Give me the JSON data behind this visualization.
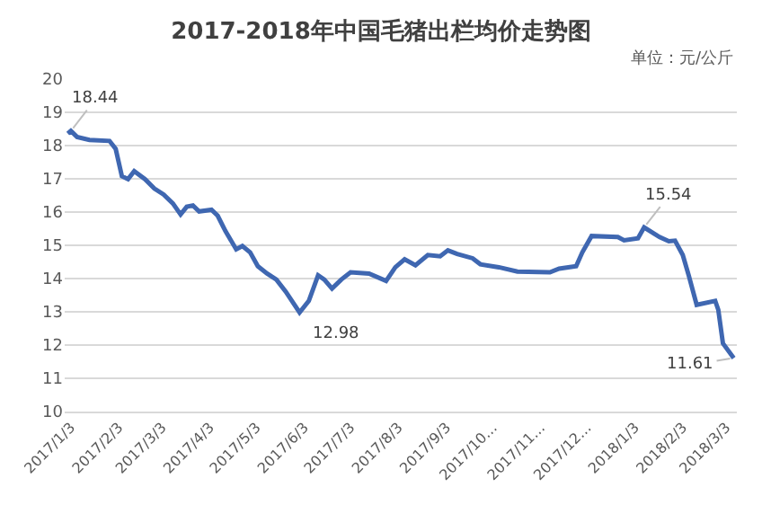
{
  "chart_data": {
    "type": "line",
    "title": "2017-2018年中国毛猪出栏均价走势图",
    "annotations": [
      "单位：元/公斤",
      {
        "text": "18.44",
        "x": "2017-01-03",
        "y": 18.44
      },
      {
        "text": "12.98",
        "x": "2017-05-31",
        "y": 12.98
      },
      {
        "text": "15.54",
        "x": "2018-01-09",
        "y": 15.54
      },
      {
        "text": "11.61",
        "x": "2018-03-08",
        "y": 11.61
      }
    ],
    "x": [
      "2017-01-01",
      "2017-01-03",
      "2017-01-07",
      "2017-01-15",
      "2017-01-28",
      "2017-02-01",
      "2017-02-05",
      "2017-02-09",
      "2017-02-13",
      "2017-02-20",
      "2017-02-26",
      "2017-03-04",
      "2017-03-10",
      "2017-03-15",
      "2017-03-19",
      "2017-03-23",
      "2017-03-27",
      "2017-04-04",
      "2017-04-08",
      "2017-04-13",
      "2017-04-20",
      "2017-04-24",
      "2017-04-29",
      "2017-05-04",
      "2017-05-10",
      "2017-05-16",
      "2017-05-22",
      "2017-05-31",
      "2017-06-06",
      "2017-06-12",
      "2017-06-16",
      "2017-06-21",
      "2017-06-27",
      "2017-07-03",
      "2017-07-15",
      "2017-07-26",
      "2017-08-01",
      "2017-08-07",
      "2017-08-14",
      "2017-08-22",
      "2017-08-30",
      "2017-09-04",
      "2017-09-10",
      "2017-09-20",
      "2017-09-25",
      "2017-10-07",
      "2017-10-19",
      "2017-11-09",
      "2017-11-15",
      "2017-11-26",
      "2017-11-30",
      "2017-12-06",
      "2017-12-23",
      "2017-12-27",
      "2018-01-05",
      "2018-01-09",
      "2018-01-19",
      "2018-01-25",
      "2018-01-29",
      "2018-02-03",
      "2018-02-07",
      "2018-02-12",
      "2018-02-24",
      "2018-02-26",
      "2018-03-01",
      "2018-03-08"
    ],
    "series": [
      {
        "color": "#3f67b1",
        "values": [
          18.36,
          18.44,
          18.26,
          18.17,
          18.14,
          17.9,
          17.08,
          16.99,
          17.23,
          16.99,
          16.71,
          16.53,
          16.26,
          15.93,
          16.16,
          16.2,
          16.02,
          16.07,
          15.89,
          15.43,
          14.88,
          14.98,
          14.79,
          14.37,
          14.15,
          13.97,
          13.61,
          12.98,
          13.33,
          14.1,
          13.97,
          13.7,
          13.97,
          14.19,
          14.15,
          13.93,
          14.34,
          14.58,
          14.4,
          14.71,
          14.67,
          14.85,
          14.74,
          14.61,
          14.43,
          14.34,
          14.21,
          14.19,
          14.3,
          14.37,
          14.79,
          15.28,
          15.25,
          15.15,
          15.21,
          15.54,
          15.25,
          15.12,
          15.14,
          14.71,
          14.07,
          13.21,
          13.33,
          13.06,
          12.05,
          11.61
        ]
      }
    ],
    "xlim": [
      "2016-12-30",
      "2018-03-10"
    ],
    "xticks": [
      {
        "value": "2017-01-03",
        "label": "2017/1/3"
      },
      {
        "value": "2017-02-03",
        "label": "2017/2/3"
      },
      {
        "value": "2017-03-03",
        "label": "2017/3/3"
      },
      {
        "value": "2017-04-03",
        "label": "2017/4/3"
      },
      {
        "value": "2017-05-03",
        "label": "2017/5/3"
      },
      {
        "value": "2017-06-03",
        "label": "2017/6/3"
      },
      {
        "value": "2017-07-03",
        "label": "2017/7/3"
      },
      {
        "value": "2017-08-03",
        "label": "2017/8/3"
      },
      {
        "value": "2017-09-03",
        "label": "2017/9/3"
      },
      {
        "value": "2017-10-03",
        "label": "2017/10…"
      },
      {
        "value": "2017-11-03",
        "label": "2017/11…"
      },
      {
        "value": "2017-12-03",
        "label": "2017/12…"
      },
      {
        "value": "2018-01-03",
        "label": "2018/1/3"
      },
      {
        "value": "2018-02-03",
        "label": "2018/2/3"
      },
      {
        "value": "2018-03-03",
        "label": "2018/3/3"
      }
    ],
    "ylim": [
      10,
      20
    ],
    "yticks": [
      10,
      11,
      12,
      13,
      14,
      15,
      16,
      17,
      18,
      19,
      20
    ],
    "grid": "y",
    "marker": "none",
    "line_style": "solid"
  }
}
